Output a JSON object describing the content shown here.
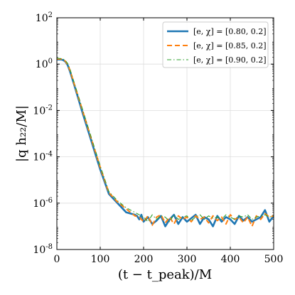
{
  "chart_data": {
    "type": "line",
    "xlabel": "(t − t_peak)/M",
    "ylabel": "|q h₂₂/M|",
    "xlim": [
      0,
      500
    ],
    "ylim_log10": [
      -8,
      2
    ],
    "yscale": "log",
    "grid": true,
    "legend_position": "top-right",
    "x_ticks": [
      0,
      100,
      200,
      300,
      400,
      500
    ],
    "y_ticks": [
      {
        "base": "10",
        "exp": "-8"
      },
      {
        "base": "10",
        "exp": "-6"
      },
      {
        "base": "10",
        "exp": "-4"
      },
      {
        "base": "10",
        "exp": "-2"
      },
      {
        "base": "10",
        "exp": "0"
      },
      {
        "base": "10",
        "exp": "2"
      }
    ],
    "series": [
      {
        "name": "[e, χ] = [0.80, 0.2]",
        "color": "#1f77b4",
        "style": "solid",
        "x": [
          0,
          10,
          15,
          20,
          25,
          30,
          40,
          60,
          80,
          100,
          120,
          140,
          160,
          180,
          185,
          190,
          195,
          200,
          210,
          220,
          230,
          240,
          250,
          260,
          270,
          280,
          290,
          300,
          310,
          320,
          330,
          340,
          350,
          360,
          370,
          380,
          390,
          400,
          410,
          420,
          430,
          440,
          450,
          460,
          470,
          480,
          490,
          500
        ],
        "log10_y": [
          0.2,
          0.2,
          0.17,
          0.1,
          -0.05,
          -0.3,
          -0.9,
          -2.15,
          -3.35,
          -4.55,
          -5.6,
          -6.0,
          -6.4,
          -6.5,
          -6.55,
          -6.7,
          -6.5,
          -6.8,
          -6.6,
          -6.9,
          -6.75,
          -6.55,
          -7.0,
          -6.7,
          -6.5,
          -6.9,
          -6.6,
          -6.8,
          -6.65,
          -6.5,
          -6.9,
          -6.6,
          -6.7,
          -7.0,
          -6.55,
          -6.8,
          -6.6,
          -6.7,
          -6.9,
          -6.55,
          -6.75,
          -6.6,
          -6.8,
          -6.7,
          -6.6,
          -6.3,
          -6.8,
          -6.55
        ]
      },
      {
        "name": "[e, χ] = [0.85, 0.2]",
        "color": "#ff7f0e",
        "style": "dashed",
        "x": [
          0,
          10,
          15,
          20,
          25,
          30,
          40,
          60,
          80,
          100,
          120,
          140,
          160,
          180,
          190,
          200,
          210,
          220,
          230,
          240,
          250,
          260,
          270,
          280,
          290,
          300,
          310,
          320,
          330,
          340,
          350,
          360,
          370,
          380,
          390,
          400,
          410,
          420,
          430,
          440,
          450,
          460,
          470,
          480,
          490,
          500
        ],
        "log10_y": [
          0.22,
          0.22,
          0.19,
          0.12,
          -0.02,
          -0.25,
          -0.85,
          -2.05,
          -3.25,
          -4.45,
          -5.55,
          -5.95,
          -6.25,
          -6.55,
          -6.6,
          -6.8,
          -6.55,
          -6.95,
          -6.6,
          -6.5,
          -6.85,
          -6.6,
          -6.9,
          -6.55,
          -6.7,
          -6.6,
          -6.8,
          -6.55,
          -6.7,
          -6.6,
          -6.85,
          -6.55,
          -6.75,
          -6.6,
          -6.9,
          -6.5,
          -6.7,
          -6.6,
          -6.85,
          -6.6,
          -7.0,
          -6.55,
          -6.7,
          -6.45,
          -6.6,
          -6.55
        ]
      },
      {
        "name": "[e, χ] = [0.90, 0.2]",
        "color": "#2ca02c",
        "style": "dashdot",
        "x": [
          0,
          10,
          15,
          20,
          25,
          30,
          40,
          60,
          80,
          100,
          120,
          140,
          160,
          180,
          190,
          200,
          210,
          220,
          230,
          240,
          250,
          260,
          270,
          280,
          290,
          300,
          310,
          320,
          330,
          340,
          350,
          360,
          370,
          380,
          390,
          400,
          410,
          420,
          430,
          440,
          450,
          460,
          470,
          480,
          490,
          500
        ],
        "log10_y": [
          0.25,
          0.24,
          0.21,
          0.15,
          0.02,
          -0.2,
          -0.8,
          -2.0,
          -3.2,
          -4.4,
          -5.5,
          -5.9,
          -6.2,
          -6.4,
          -6.5,
          -6.6,
          -6.8,
          -6.5,
          -6.7,
          -6.55,
          -6.6,
          -6.8,
          -6.5,
          -6.7,
          -6.6,
          -6.55,
          -6.75,
          -6.6,
          -6.5,
          -6.7,
          -6.55,
          -6.65,
          -6.6,
          -6.7,
          -6.5,
          -6.6,
          -6.7,
          -6.55,
          -6.6,
          -6.5,
          -6.7,
          -6.6,
          -6.55,
          -6.5,
          -6.6,
          -6.55
        ]
      }
    ]
  }
}
